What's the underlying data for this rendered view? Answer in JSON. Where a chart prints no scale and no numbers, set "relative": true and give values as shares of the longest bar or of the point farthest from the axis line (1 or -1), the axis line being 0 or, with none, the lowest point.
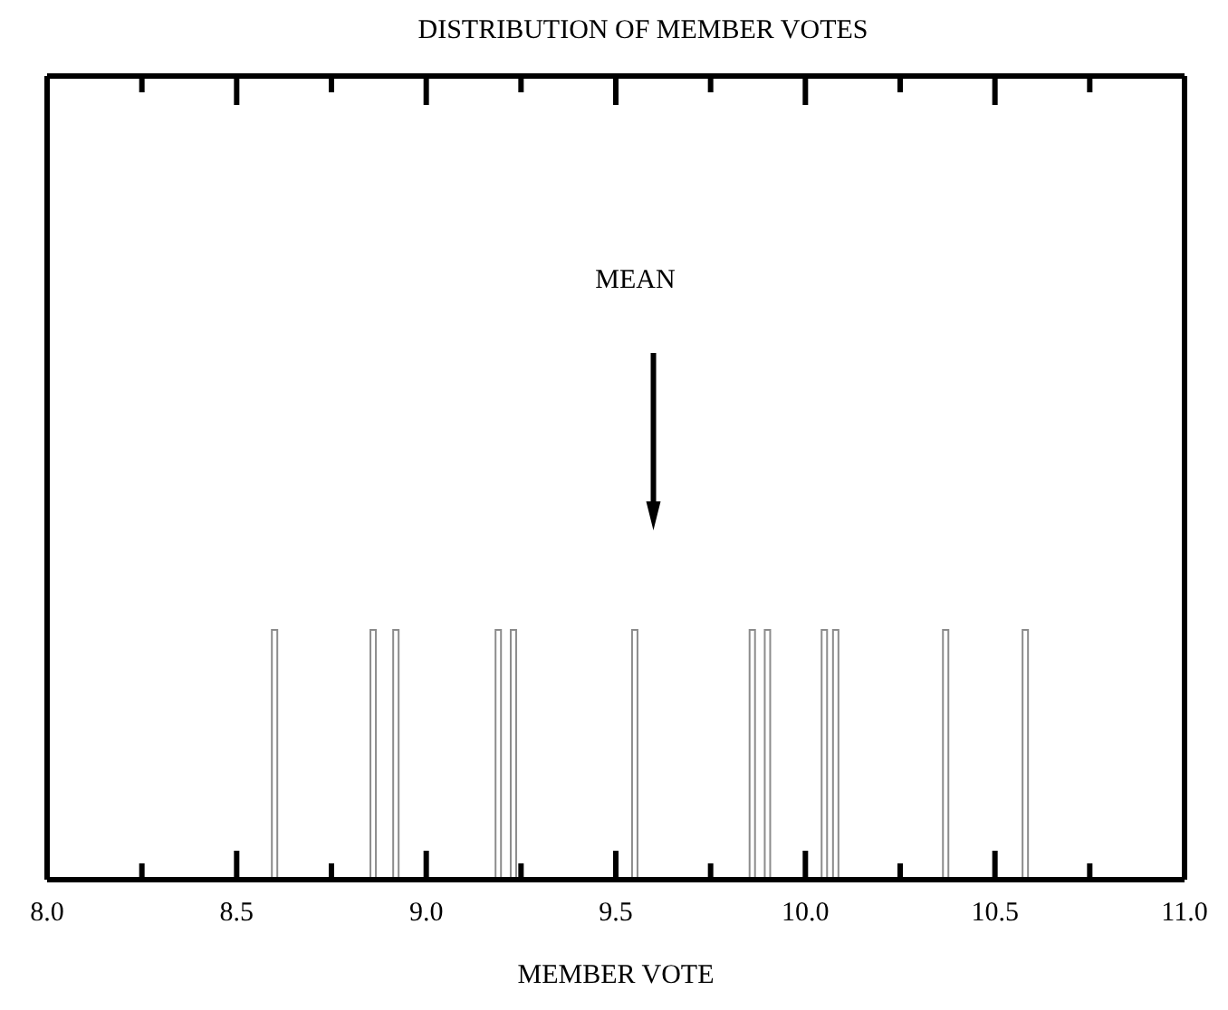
{
  "chart_data": {
    "type": "bar",
    "title": "DISTRIBUTION OF MEMBER VOTES",
    "xlabel": "MEMBER VOTE",
    "relative": true,
    "x": [
      8.6,
      8.86,
      8.92,
      9.19,
      9.23,
      9.55,
      9.86,
      9.9,
      10.05,
      10.08,
      10.37,
      10.58
    ],
    "values": [
      1,
      1,
      1,
      1,
      1,
      1,
      1,
      1,
      1,
      1,
      1,
      1
    ],
    "color": "#8c8c8c",
    "xlim": [
      8.0,
      11.0
    ],
    "xticks": [
      {
        "value": 8,
        "label": "8.0"
      },
      {
        "value": 8.25,
        "label": null
      },
      8.5,
      {
        "value": 8.75,
        "label": null
      },
      {
        "value": 9,
        "label": "9.0"
      },
      {
        "value": 9.25,
        "label": null
      },
      9.5,
      {
        "value": 9.75,
        "label": null
      },
      {
        "value": 10,
        "label": "10.0"
      },
      {
        "value": 10.25,
        "label": null
      },
      10.5,
      {
        "value": 10.75,
        "label": null
      },
      {
        "value": 11,
        "label": "11.0"
      }
    ],
    "annotations": [
      "MEAN"
    ],
    "grid": false
  }
}
